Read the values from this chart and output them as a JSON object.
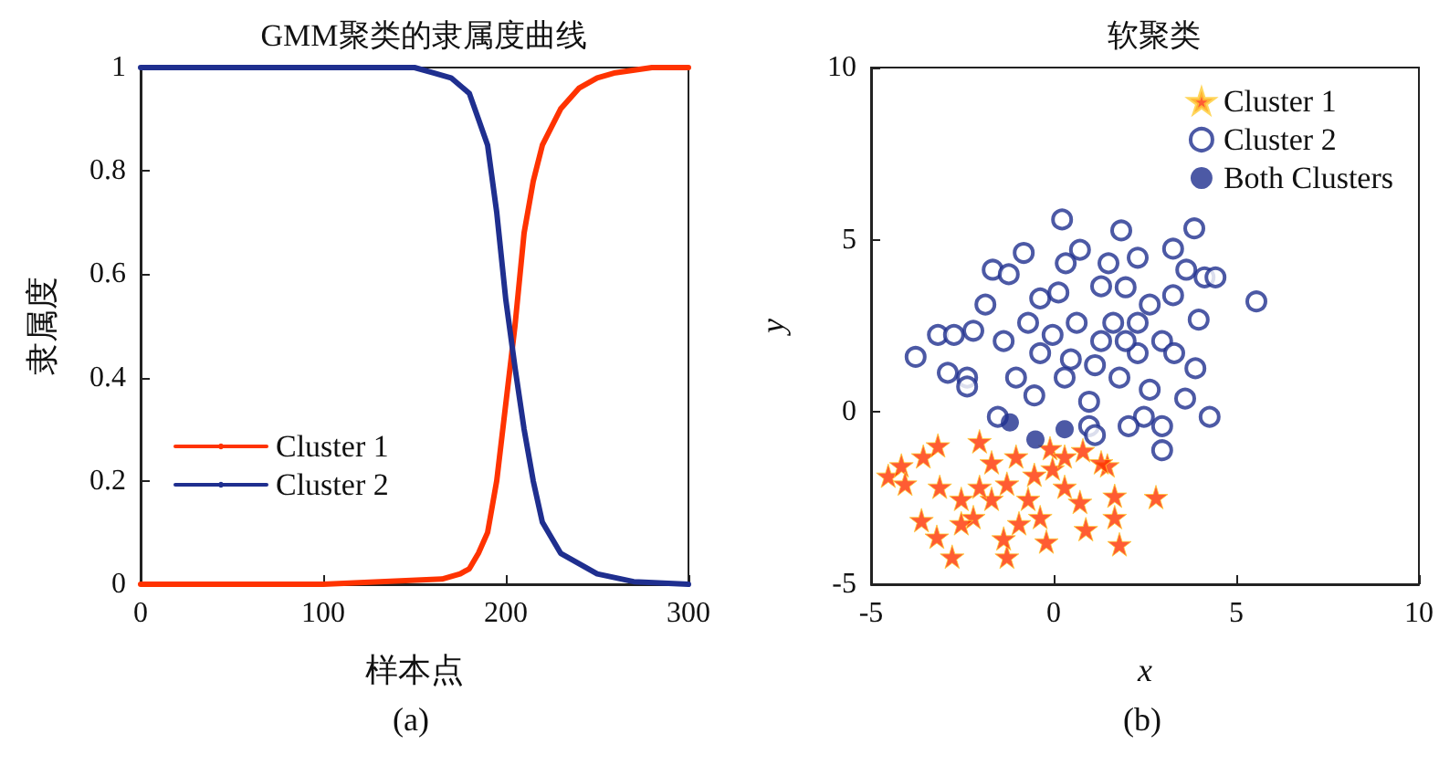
{
  "chart_data": [
    {
      "type": "line",
      "title": "GMM聚类的隶属度曲线",
      "xlabel": "样本点",
      "ylabel": "隶属度",
      "annotations": [
        "(a)"
      ],
      "xlim": [
        0,
        300
      ],
      "xticks": [
        0,
        100,
        200,
        300
      ],
      "ylim": [
        0,
        1
      ],
      "yticks": [
        0,
        0.2,
        0.4,
        0.6,
        0.8,
        1
      ],
      "grid": false,
      "legend": "bottom left",
      "marker": "none",
      "line_style": "solid",
      "series": [
        {
          "name": "Cluster 1",
          "color": "#ff3300",
          "x": [
            0,
            100,
            165,
            175,
            180,
            185,
            190,
            195,
            200,
            205,
            210,
            215,
            220,
            230,
            240,
            250,
            260,
            280,
            300
          ],
          "values": [
            0,
            0,
            0.01,
            0.02,
            0.03,
            0.06,
            0.1,
            0.2,
            0.35,
            0.5,
            0.68,
            0.78,
            0.85,
            0.92,
            0.96,
            0.98,
            0.99,
            1,
            1
          ]
        },
        {
          "name": "Cluster 2",
          "color": "#1f2f8f",
          "x": [
            0,
            100,
            150,
            160,
            170,
            180,
            185,
            190,
            195,
            200,
            205,
            210,
            215,
            220,
            230,
            250,
            270,
            300
          ],
          "values": [
            1,
            1,
            1,
            0.99,
            0.98,
            0.95,
            0.9,
            0.85,
            0.72,
            0.55,
            0.42,
            0.3,
            0.2,
            0.12,
            0.06,
            0.02,
            0.005,
            0
          ]
        }
      ]
    },
    {
      "type": "scatter",
      "title": "软聚类",
      "xlabel": "x",
      "ylabel": "y",
      "annotations": [
        "(b)"
      ],
      "xlim": [
        -5,
        10
      ],
      "xticks": [
        -5,
        0,
        5,
        10
      ],
      "ylim": [
        -5,
        10
      ],
      "yticks": [
        -5,
        0,
        5,
        10
      ],
      "grid": false,
      "legend": "top right",
      "series": [
        {
          "name": "Cluster 1",
          "color": "#ff3300",
          "marker": "star",
          "x": [
            -4.53,
            -4.17,
            -4.07,
            -3.57,
            -3.17,
            -3.62,
            -3.2,
            -2.78,
            -3.12,
            -2.53,
            -2.2,
            -2.03,
            -1.7,
            -1.28,
            -1.37,
            -0.95,
            -0.2,
            -0.7,
            -1.03,
            -0.1,
            -0.03,
            0.3,
            0.72,
            0.88,
            0.8,
            1.47,
            1.67,
            1.67,
            1.8,
            2.8,
            -1.7,
            -2.03,
            -0.53,
            -1.28,
            0.3,
            -2.53,
            -0.37,
            1.3
          ],
          "values": [
            -1.85,
            -1.55,
            -2.08,
            -1.29,
            -0.97,
            -3.14,
            -3.62,
            -4.2,
            -2.17,
            -2.52,
            -3.05,
            -0.85,
            -1.46,
            -4.2,
            -3.67,
            -3.23,
            -3.76,
            -2.52,
            -1.29,
            -1.05,
            -1.64,
            -2.17,
            -2.61,
            -3.4,
            -1.11,
            -1.55,
            -2.43,
            -3.05,
            -3.84,
            -2.47,
            -2.52,
            -2.17,
            -1.82,
            -2.08,
            -1.29,
            -3.23,
            -3.05,
            -1.46
          ]
        },
        {
          "name": "Cluster 2",
          "color": "#1f2f8f",
          "marker": "emptyCircle",
          "x": [
            -3.78,
            -3.17,
            -2.73,
            -2.9,
            -2.37,
            -2.37,
            -2.2,
            -1.87,
            -1.67,
            -1.23,
            -0.82,
            0.23,
            0.72,
            0.33,
            1.5,
            1.85,
            2.3,
            3.27,
            3.85,
            3.63,
            4.13,
            4.43,
            5.55,
            3.27,
            3.97,
            3.88,
            3.6,
            4.27,
            2.97,
            2.97,
            2.47,
            2.05,
            1.3,
            1.97,
            2.63,
            -0.7,
            -1.37,
            -0.37,
            0.13,
            -1.03,
            -0.53,
            -1.53,
            0.97,
            1.13,
            0.47,
            1.3,
            1.63,
            2.3,
            2.97,
            -0.03,
            0.3,
            0.97,
            1.8,
            -0.37,
            2.3,
            3.3,
            2.63,
            1.13,
            0.63,
            1.97
          ],
          "values": [
            1.6,
            2.24,
            2.24,
            1.14,
            1,
            0.74,
            2.36,
            3.12,
            4.13,
            4,
            4.62,
            5.59,
            4.71,
            4.32,
            4.32,
            5.27,
            4.48,
            4.74,
            5.33,
            4.13,
            3.91,
            3.91,
            3.21,
            3.39,
            2.68,
            1.27,
            0.39,
            -0.14,
            -0.41,
            -1.11,
            -0.14,
            -0.41,
            3.65,
            3.62,
            3.12,
            2.59,
            2.06,
            3.3,
            3.47,
            1,
            0.48,
            -0.14,
            -0.41,
            -0.67,
            1.53,
            2.06,
            2.59,
            1.71,
            2.06,
            2.24,
            1,
            0.3,
            1,
            1.71,
            2.59,
            1.71,
            0.65,
            1.36,
            2.59,
            2.06
          ]
        },
        {
          "name": "Both Clusters",
          "color": "#1f2f8f",
          "marker": "circle",
          "x": [
            -1.2,
            0.3,
            -0.5
          ],
          "values": [
            -0.3,
            -0.5,
            -0.8
          ]
        }
      ]
    }
  ]
}
